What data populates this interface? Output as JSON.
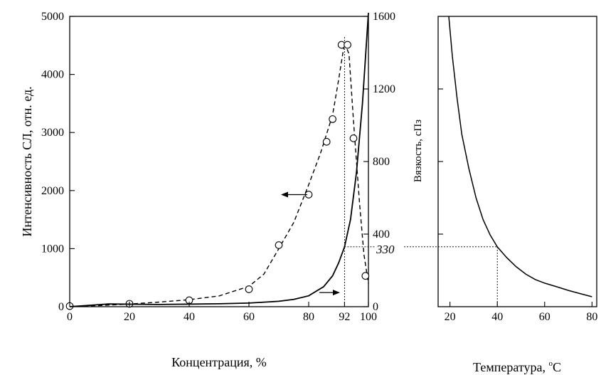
{
  "chart_data": [
    {
      "type": "line",
      "xlabel": "Концентрация, %",
      "ylabel": "Интенсивность СЛ, отн. ед.",
      "y2label": "Вязкость, сПз",
      "xlim": [
        0,
        100
      ],
      "ylim": [
        0,
        5000
      ],
      "y2lim": [
        0,
        1600
      ],
      "x_ticks": [
        "0",
        "20",
        "40",
        "60",
        "80",
        "92",
        "100"
      ],
      "x_tick_values": [
        0,
        20,
        40,
        60,
        80,
        92,
        100
      ],
      "y_ticks": [
        "0",
        "1000",
        "2000",
        "3000",
        "4000",
        "5000"
      ],
      "y_tick_values": [
        0,
        1000,
        2000,
        3000,
        4000,
        5000
      ],
      "y2_ticks": [
        "0",
        "400",
        "800",
        "1200",
        "1600"
      ],
      "y2_tick_values": [
        0,
        400,
        800,
        1200,
        1600
      ],
      "annotation": "330",
      "series": [
        {
          "style": "dashed-with-circles",
          "axis": "left",
          "x": [
            0,
            20,
            40,
            60,
            70,
            80,
            86,
            88,
            91,
            93,
            95,
            99
          ],
          "y": [
            10,
            50,
            110,
            300,
            1060,
            1930,
            2840,
            3230,
            4510,
            4510,
            2900,
            530
          ],
          "curve_x": [
            0,
            10,
            20,
            30,
            40,
            50,
            60,
            65,
            70,
            75,
            80,
            84,
            88,
            90,
            92,
            93.5,
            95,
            97,
            98.5,
            100
          ],
          "curve_y": [
            5,
            20,
            45,
            80,
            120,
            185,
            350,
            560,
            1000,
            1450,
            2100,
            2650,
            3300,
            3900,
            4550,
            4350,
            3200,
            1800,
            900,
            400
          ]
        },
        {
          "style": "solid",
          "axis": "right",
          "x": [
            0,
            13,
            30,
            50,
            60,
            70,
            75,
            80,
            85,
            88,
            90,
            92,
            94,
            96,
            98,
            100
          ],
          "y": [
            0,
            15,
            12,
            16,
            20,
            30,
            40,
            60,
            110,
            170,
            240,
            330,
            480,
            740,
            1120,
            1620
          ]
        }
      ]
    },
    {
      "type": "line",
      "xlabel": "Температура, °C",
      "xlabel_main": "Температура, ",
      "xlabel_sup": "o",
      "xlabel_unit": "C",
      "xlim": [
        15,
        82
      ],
      "ylim": [
        0,
        1600
      ],
      "x_ticks": [
        "20",
        "40",
        "60",
        "80"
      ],
      "x_tick_values": [
        20,
        40,
        60,
        80
      ],
      "series": [
        {
          "style": "solid",
          "x": [
            19.5,
            21,
            23,
            25,
            28,
            31,
            34,
            37,
            40,
            44,
            48,
            52,
            56,
            60,
            65,
            70,
            75,
            80
          ],
          "y": [
            1600,
            1380,
            1150,
            950,
            760,
            600,
            480,
            395,
            330,
            270,
            220,
            180,
            150,
            130,
            110,
            90,
            72,
            55
          ]
        }
      ]
    }
  ]
}
